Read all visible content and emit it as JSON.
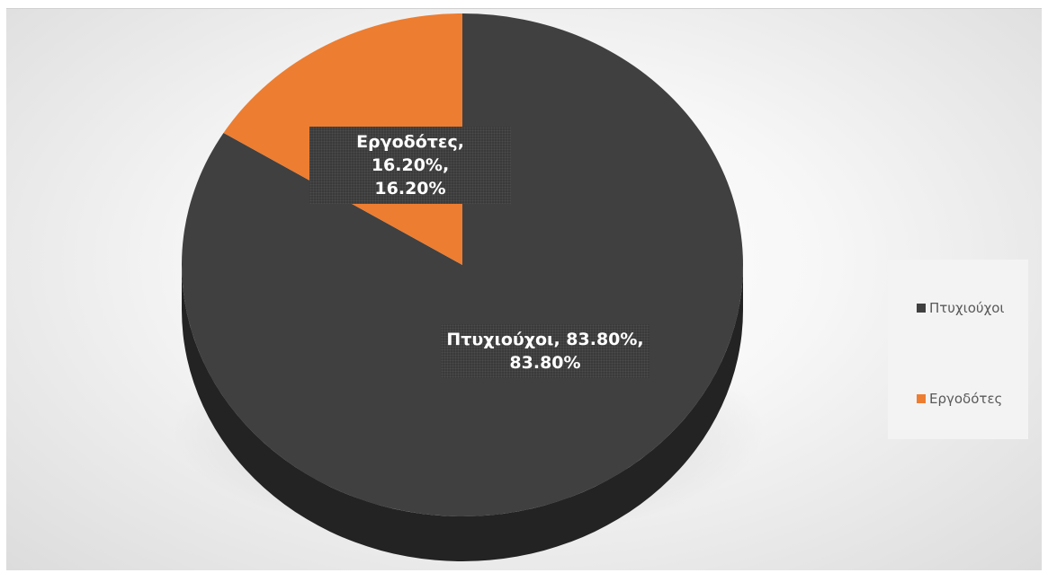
{
  "chart_data": {
    "type": "pie",
    "style": "3d",
    "categories": [
      "Πτυχιούχοι",
      "Εργοδότες"
    ],
    "values": [
      83.8,
      16.2
    ],
    "colors": [
      "#404040",
      "#ed7d31"
    ],
    "data_labels": [
      "Πτυχιούχοι, 83.80%,\n83.80%",
      "Εργοδότες, 16.20%,\n16.20%"
    ],
    "legend_position": "right",
    "title": ""
  }
}
